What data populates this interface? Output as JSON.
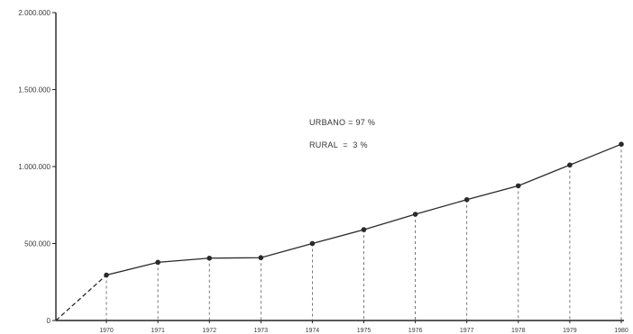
{
  "chart_data": {
    "type": "line",
    "title": "",
    "xlabel": "",
    "ylabel": "",
    "x": [
      "1970",
      "1971",
      "1972",
      "1973",
      "1974",
      "1975",
      "1976",
      "1977",
      "1978",
      "1979",
      "1980"
    ],
    "values": [
      295000,
      378000,
      405000,
      408000,
      500000,
      590000,
      690000,
      785000,
      875000,
      1010000,
      1145000
    ],
    "origin_value": 0,
    "ylim": [
      0,
      2000000
    ],
    "yticks": [
      0,
      500000,
      1000000,
      1500000,
      2000000
    ],
    "ytick_labels": [
      "0",
      "500.000",
      "1.000.000",
      "1.500.000",
      "2.000.000"
    ],
    "drop_lines": true,
    "grid": false,
    "annotations": [
      "URBANO = 97 %",
      "RURAL  =  3 %"
    ],
    "colors": {
      "line": "#2a2a2a",
      "axis": "#222222",
      "dropline": "#555555"
    }
  }
}
